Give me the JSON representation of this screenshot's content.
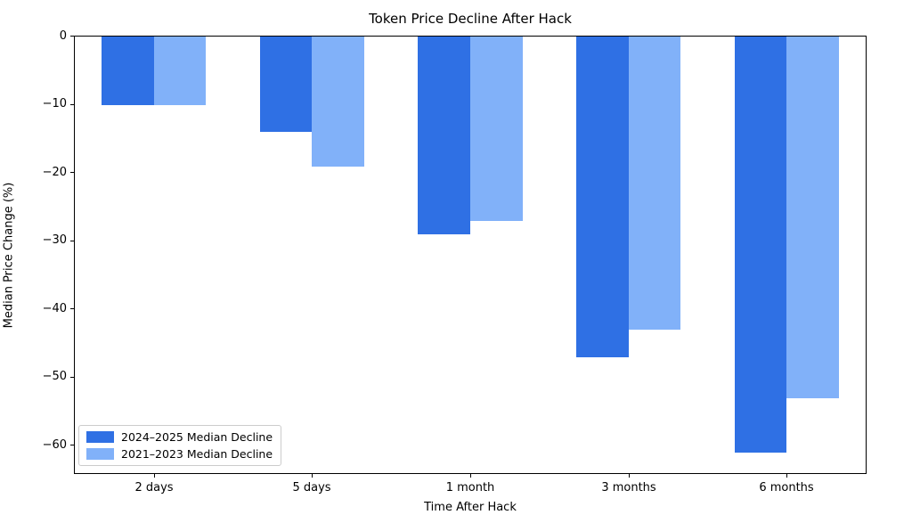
{
  "chart_data": {
    "type": "bar",
    "title": "Token Price Decline After Hack",
    "xlabel": "Time After Hack",
    "ylabel": "Median Price Change (%)",
    "categories": [
      "2 days",
      "5 days",
      "1 month",
      "3 months",
      "6 months"
    ],
    "series": [
      {
        "name": "2024–2025 Median Decline",
        "color": "#2f70e4",
        "values": [
          -10,
          -14,
          -29,
          -47,
          -61
        ]
      },
      {
        "name": "2021–2023 Median Decline",
        "color": "#81b1f9",
        "values": [
          -10,
          -19,
          -27,
          -43,
          -53
        ]
      }
    ],
    "ylim": [
      -64,
      0
    ],
    "yticks": [
      0,
      -10,
      -20,
      -30,
      -40,
      -50,
      -60
    ],
    "ytick_labels": [
      "0",
      "−10",
      "−20",
      "−30",
      "−40",
      "−50",
      "−60"
    ],
    "grid": false,
    "legend_position": "lower left",
    "bar_width_fraction": 0.33,
    "background_color": "#ffffff",
    "spine_color": "#000000"
  }
}
